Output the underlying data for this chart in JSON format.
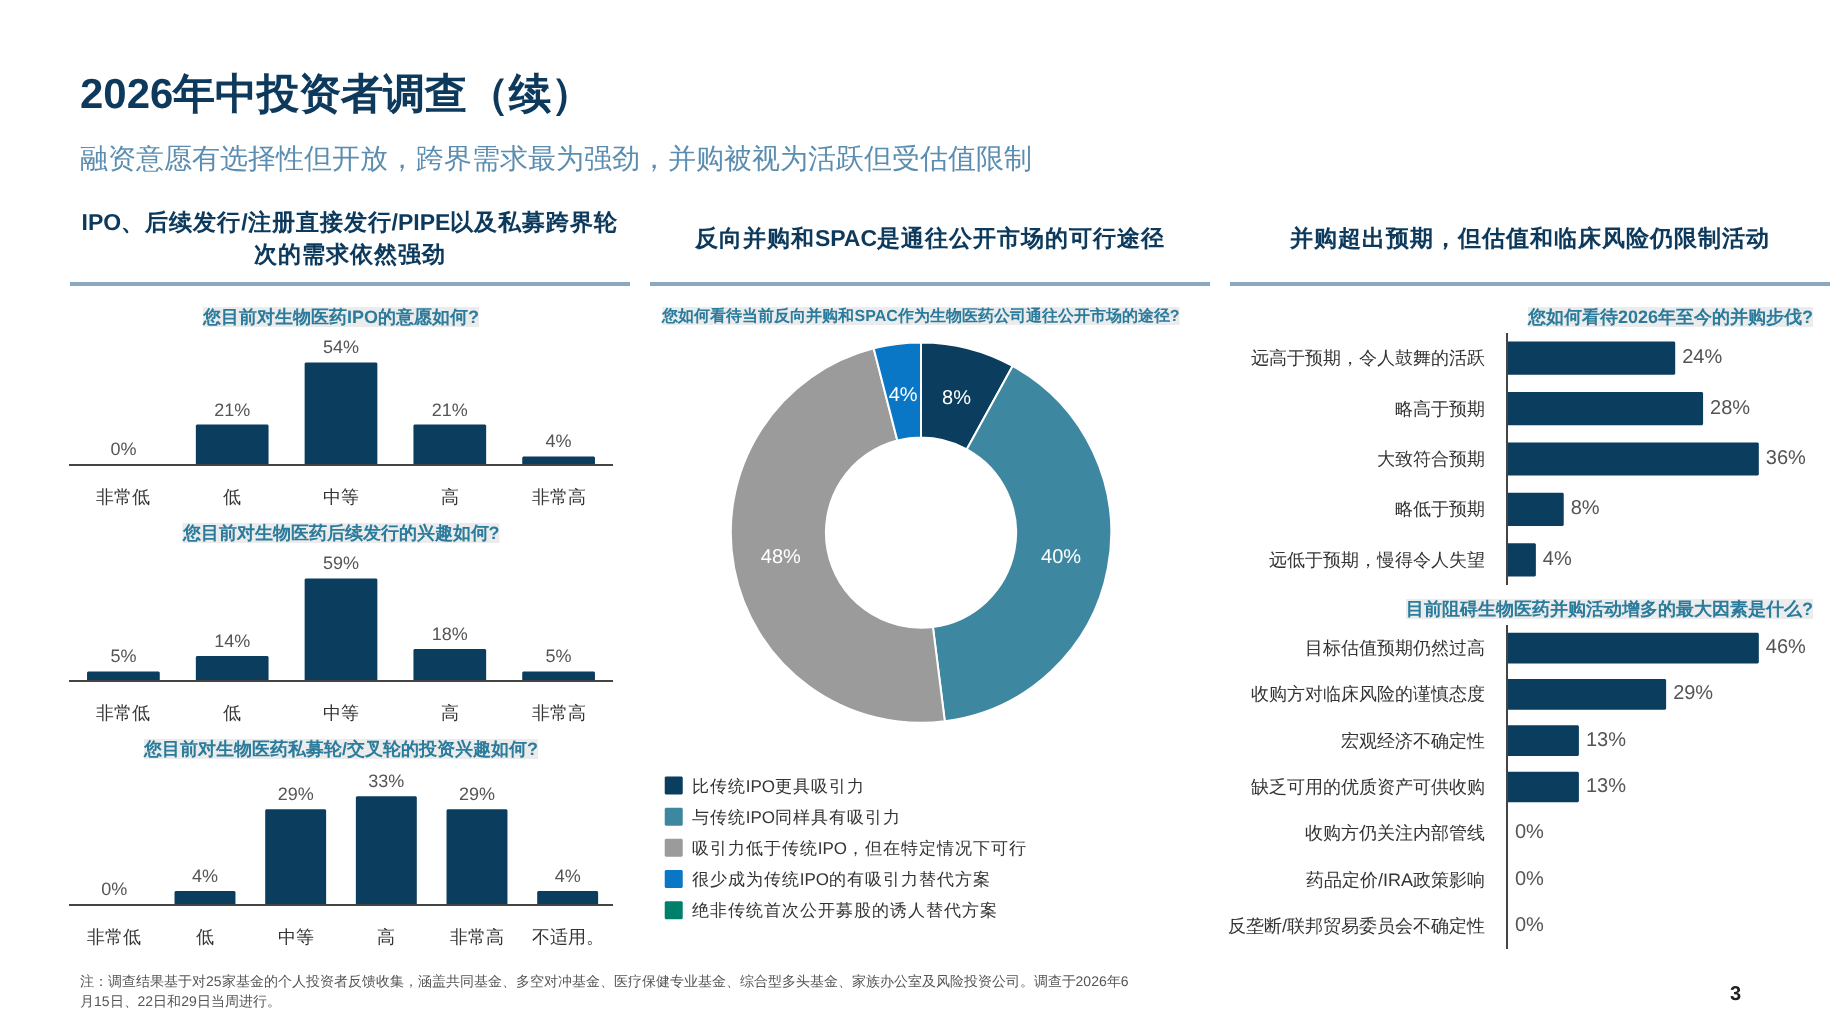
{
  "chart_data": [
    {
      "type": "other",
      "title": "2026年中投资者调查（续）",
      "subtitle": "融资意愿有选择性但开放，跨界需求最为强劲，并购被视为活跃但受估值限制",
      "annotations": [
        "注：调查结果基于对25家基金的个人投资者反馈收集，涵盖共同基金、多空对冲基金、医疗保健专业基金、综合型多头基金、家族办公室及风险投资公司。调查于2026年6月15日、22日和29日当周进行。",
        "3"
      ]
    },
    {
      "type": "bar",
      "title": "IPO、后续发行/注册直接发行/PIPE以及私募跨界轮次的需求依然强劲",
      "subtitle": "您目前对生物医药IPO的意愿如何?",
      "categories": [
        "非常低",
        "低",
        "中等",
        "高",
        "非常高"
      ],
      "values": [
        0,
        21,
        54,
        21,
        4
      ],
      "value_labels": [
        "0%",
        "21%",
        "54%",
        "21%",
        "4%"
      ],
      "color": "#0b3d5e"
    },
    {
      "type": "bar",
      "title": "您目前对生物医药后续发行的兴趣如何?",
      "categories": [
        "非常低",
        "低",
        "中等",
        "高",
        "非常高"
      ],
      "values": [
        5,
        14,
        59,
        18,
        5
      ],
      "value_labels": [
        "5%",
        "14%",
        "59%",
        "18%",
        "5%"
      ],
      "color": "#0b3d5e"
    },
    {
      "type": "bar",
      "title": "您目前对生物医药私募轮/交叉轮的投资兴趣如何?",
      "categories": [
        "非常低",
        "低",
        "中等",
        "高",
        "非常高",
        "不适用。"
      ],
      "values": [
        0,
        4,
        29,
        33,
        29,
        4
      ],
      "value_labels": [
        "0%",
        "4%",
        "29%",
        "33%",
        "29%",
        "4%"
      ],
      "color": "#0b3d5e"
    },
    {
      "type": "donut",
      "title": "反向并购和SPAC是通往公开市场的可行途径",
      "subtitle": "您如何看待当前反向并购和SPAC作为生物医药公司通往公开市场的途径?",
      "categories": [
        "比传统IPO更具吸引力",
        "与传统IPO同样具有吸引力",
        "吸引力低于传统IPO，但在特定情况下可行",
        "很少成为传统IPO的有吸引力替代方案",
        "绝非传统首次公开募股的诱人替代方案"
      ],
      "values": [
        8,
        40,
        48,
        4,
        0
      ],
      "value_labels": [
        "8%",
        "40%",
        "48%",
        "4%",
        null
      ],
      "colors": [
        "#0b3d5e",
        "#3d87a0",
        "#9b9b9b",
        "#0a77c6",
        "#00806a"
      ],
      "legend": "bottom"
    },
    {
      "type": "bar",
      "orientation": "horizontal",
      "title": "并购超出预期，但估值和临床风险仍限制活动",
      "subtitle": "您如何看待2026年至今的并购步伐?",
      "categories": [
        "远高于预期，令人鼓舞的活跃",
        "略高于预期",
        "大致符合预期",
        "略低于预期",
        "远低于预期，慢得令人失望"
      ],
      "values": [
        24,
        28,
        36,
        8,
        4
      ],
      "value_labels": [
        "24%",
        "28%",
        "36%",
        "8%",
        "4%"
      ],
      "color": "#0b3d5e"
    },
    {
      "type": "bar",
      "orientation": "horizontal",
      "title": "目前阻碍生物医药并购活动增多的最大因素是什么?",
      "categories": [
        "目标估值预期仍然过高",
        "收购方对临床风险的谨慎态度",
        "宏观经济不确定性",
        "缺乏可用的优质资产可供收购",
        "收购方仍关注内部管线",
        "药品定价/IRA政策影响",
        "反垄断/联邦贸易委员会不确定性"
      ],
      "values": [
        46,
        29,
        13,
        13,
        0,
        0,
        0
      ],
      "value_labels": [
        "46%",
        "29%",
        "13%",
        "13%",
        "0%",
        "0%",
        "0%"
      ],
      "color": "#0b3d5e"
    }
  ]
}
